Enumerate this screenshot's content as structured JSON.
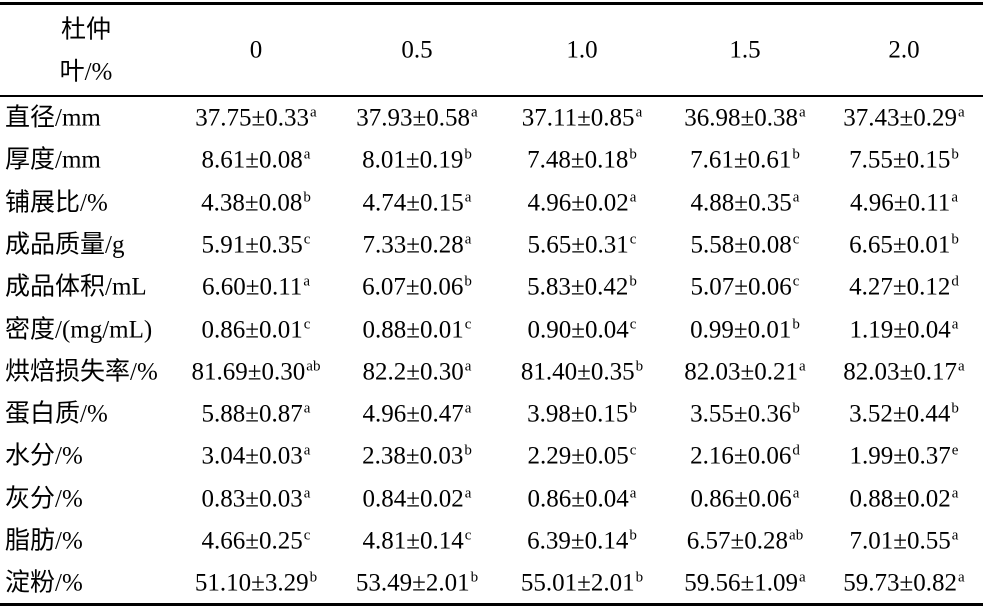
{
  "header": {
    "corner": [
      "杜仲",
      "叶/%"
    ],
    "columns": [
      "0",
      "0.5",
      "1.0",
      "1.5",
      "2.0"
    ]
  },
  "rows": [
    {
      "label": "直径/mm",
      "cells": [
        {
          "value": "37.75±0.33",
          "sup": "a"
        },
        {
          "value": "37.93±0.58",
          "sup": "a"
        },
        {
          "value": "37.11±0.85",
          "sup": "a"
        },
        {
          "value": "36.98±0.38",
          "sup": "a"
        },
        {
          "value": "37.43±0.29",
          "sup": "a"
        }
      ]
    },
    {
      "label": "厚度/mm",
      "cells": [
        {
          "value": "8.61±0.08",
          "sup": "a"
        },
        {
          "value": "8.01±0.19",
          "sup": "b"
        },
        {
          "value": "7.48±0.18",
          "sup": "b"
        },
        {
          "value": "7.61±0.61",
          "sup": "b"
        },
        {
          "value": "7.55±0.15",
          "sup": "b"
        }
      ]
    },
    {
      "label": "铺展比/%",
      "cells": [
        {
          "value": "4.38±0.08",
          "sup": "b"
        },
        {
          "value": "4.74±0.15",
          "sup": "a"
        },
        {
          "value": "4.96±0.02",
          "sup": "a"
        },
        {
          "value": "4.88±0.35",
          "sup": "a"
        },
        {
          "value": "4.96±0.11",
          "sup": "a"
        }
      ]
    },
    {
      "label": "成品质量/g",
      "cells": [
        {
          "value": "5.91±0.35",
          "sup": "c"
        },
        {
          "value": "7.33±0.28",
          "sup": "a"
        },
        {
          "value": "5.65±0.31",
          "sup": "c"
        },
        {
          "value": "5.58±0.08",
          "sup": "c"
        },
        {
          "value": "6.65±0.01",
          "sup": "b"
        }
      ]
    },
    {
      "label": "成品体积/mL",
      "cells": [
        {
          "value": "6.60±0.11",
          "sup": "a"
        },
        {
          "value": "6.07±0.06",
          "sup": "b"
        },
        {
          "value": "5.83±0.42",
          "sup": "b"
        },
        {
          "value": "5.07±0.06",
          "sup": "c"
        },
        {
          "value": "4.27±0.12",
          "sup": "d"
        }
      ]
    },
    {
      "label": "密度/(mg/mL)",
      "cells": [
        {
          "value": "0.86±0.01",
          "sup": "c"
        },
        {
          "value": "0.88±0.01",
          "sup": "c"
        },
        {
          "value": "0.90±0.04",
          "sup": "c"
        },
        {
          "value": "0.99±0.01",
          "sup": "b"
        },
        {
          "value": "1.19±0.04",
          "sup": "a"
        }
      ]
    },
    {
      "label": "烘焙损失率/%",
      "cells": [
        {
          "value": "81.69±0.30",
          "sup": "ab"
        },
        {
          "value": "82.2±0.30",
          "sup": "a"
        },
        {
          "value": "81.40±0.35",
          "sup": "b"
        },
        {
          "value": "82.03±0.21",
          "sup": "a"
        },
        {
          "value": "82.03±0.17",
          "sup": "a"
        }
      ]
    },
    {
      "label": "蛋白质/%",
      "cells": [
        {
          "value": "5.88±0.87",
          "sup": "a"
        },
        {
          "value": "4.96±0.47",
          "sup": "a"
        },
        {
          "value": "3.98±0.15",
          "sup": "b"
        },
        {
          "value": "3.55±0.36",
          "sup": "b"
        },
        {
          "value": "3.52±0.44",
          "sup": "b"
        }
      ]
    },
    {
      "label": "水分/%",
      "cells": [
        {
          "value": "3.04±0.03",
          "sup": "a"
        },
        {
          "value": "2.38±0.03",
          "sup": "b"
        },
        {
          "value": "2.29±0.05",
          "sup": "c"
        },
        {
          "value": "2.16±0.06",
          "sup": "d"
        },
        {
          "value": "1.99±0.37",
          "sup": "e"
        }
      ]
    },
    {
      "label": "灰分/%",
      "cells": [
        {
          "value": "0.83±0.03",
          "sup": "a"
        },
        {
          "value": "0.84±0.02",
          "sup": "a"
        },
        {
          "value": "0.86±0.04",
          "sup": "a"
        },
        {
          "value": "0.86±0.06",
          "sup": "a"
        },
        {
          "value": "0.88±0.02",
          "sup": "a"
        }
      ]
    },
    {
      "label": "脂肪/%",
      "cells": [
        {
          "value": "4.66±0.25",
          "sup": "c"
        },
        {
          "value": "4.81±0.14",
          "sup": "c"
        },
        {
          "value": "6.39±0.14",
          "sup": "b"
        },
        {
          "value": "6.57±0.28",
          "sup": "ab"
        },
        {
          "value": "7.01±0.55",
          "sup": "a"
        }
      ]
    },
    {
      "label": "淀粉/%",
      "cells": [
        {
          "value": "51.10±3.29",
          "sup": "b"
        },
        {
          "value": "53.49±2.01",
          "sup": "b"
        },
        {
          "value": "55.01±2.01",
          "sup": "b"
        },
        {
          "value": "59.56±1.09",
          "sup": "a"
        },
        {
          "value": "59.73±0.82",
          "sup": "a"
        }
      ]
    }
  ]
}
